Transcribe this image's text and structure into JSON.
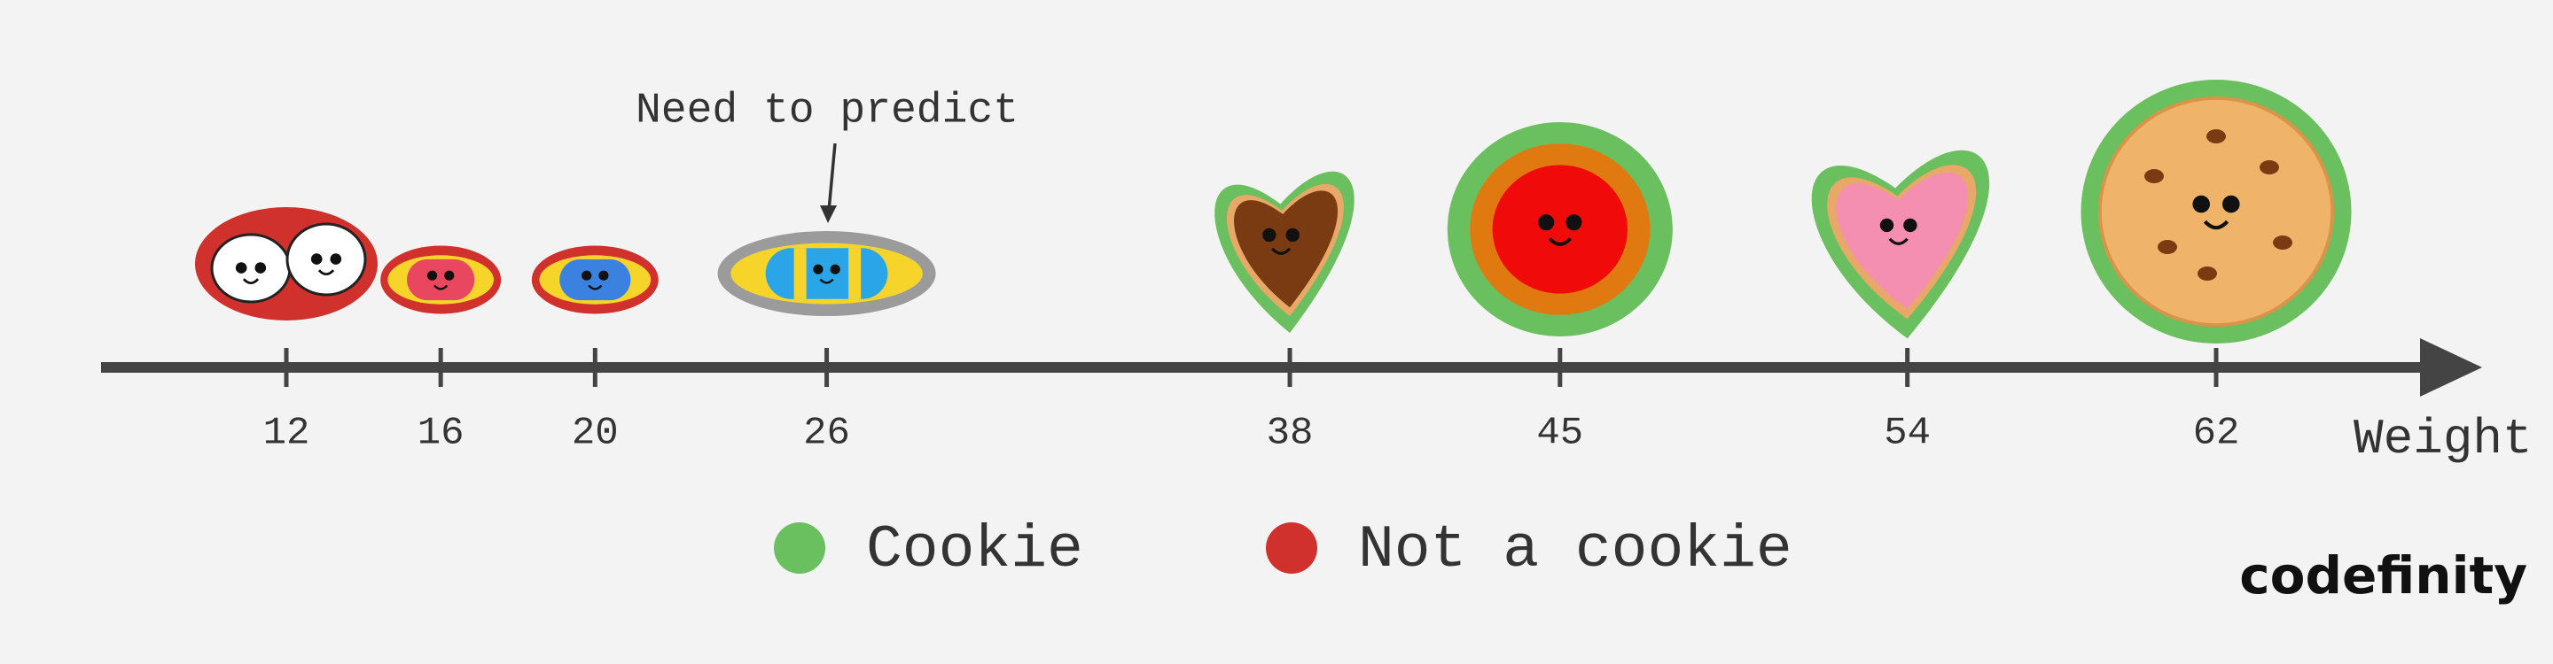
{
  "annotation": "Need to predict",
  "axis": {
    "label": "Weight",
    "ticks": [
      12,
      16,
      20,
      26,
      38,
      45,
      54,
      62
    ]
  },
  "legend": [
    {
      "label": "Cookie",
      "color": "#6abf5e"
    },
    {
      "label": "Not a cookie",
      "color": "#d0312d"
    }
  ],
  "logo": "codefinity"
}
